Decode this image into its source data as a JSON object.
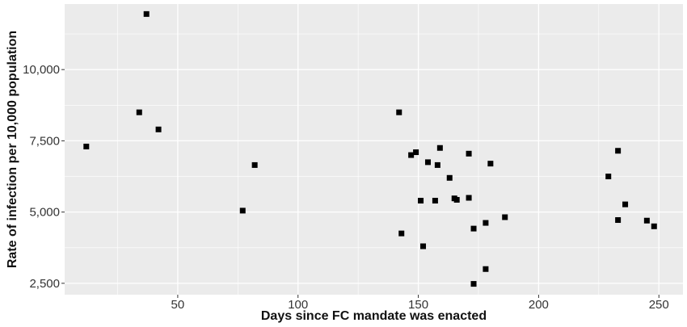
{
  "chart_data": {
    "type": "scatter",
    "xlabel": "Days since FC mandate was enacted",
    "ylabel": "Rate of infection per 10,000 population",
    "xlim": [
      3,
      260
    ],
    "ylim": [
      2100,
      12300
    ],
    "x_ticks": [
      50,
      100,
      150,
      200,
      250
    ],
    "x_tick_labels": [
      "50",
      "100",
      "150",
      "200",
      "250"
    ],
    "y_ticks": [
      2500,
      5000,
      7500,
      10000
    ],
    "y_tick_labels": [
      "2,500",
      "5,000",
      "7,500",
      "10,000"
    ],
    "grid": true,
    "marker_color": "#000000",
    "panel_color": "#ebebeb",
    "grid_color": "#ffffff",
    "points": [
      {
        "x": 12,
        "y": 7300
      },
      {
        "x": 34,
        "y": 8500
      },
      {
        "x": 37,
        "y": 11950
      },
      {
        "x": 42,
        "y": 7900
      },
      {
        "x": 77,
        "y": 5050
      },
      {
        "x": 82,
        "y": 6650
      },
      {
        "x": 142,
        "y": 8500
      },
      {
        "x": 143,
        "y": 4250
      },
      {
        "x": 147,
        "y": 7000
      },
      {
        "x": 149,
        "y": 7100
      },
      {
        "x": 151,
        "y": 5400
      },
      {
        "x": 152,
        "y": 3800
      },
      {
        "x": 154,
        "y": 6750
      },
      {
        "x": 157,
        "y": 5400
      },
      {
        "x": 158,
        "y": 6650
      },
      {
        "x": 159,
        "y": 7250
      },
      {
        "x": 163,
        "y": 6200
      },
      {
        "x": 165,
        "y": 5480
      },
      {
        "x": 166,
        "y": 5430
      },
      {
        "x": 171,
        "y": 7050
      },
      {
        "x": 171,
        "y": 5500
      },
      {
        "x": 173,
        "y": 4420
      },
      {
        "x": 173,
        "y": 2480
      },
      {
        "x": 178,
        "y": 4620
      },
      {
        "x": 178,
        "y": 3000
      },
      {
        "x": 180,
        "y": 6700
      },
      {
        "x": 186,
        "y": 4820
      },
      {
        "x": 229,
        "y": 6250
      },
      {
        "x": 233,
        "y": 7150
      },
      {
        "x": 233,
        "y": 4720
      },
      {
        "x": 236,
        "y": 5270
      },
      {
        "x": 245,
        "y": 4700
      },
      {
        "x": 248,
        "y": 4500
      }
    ]
  }
}
